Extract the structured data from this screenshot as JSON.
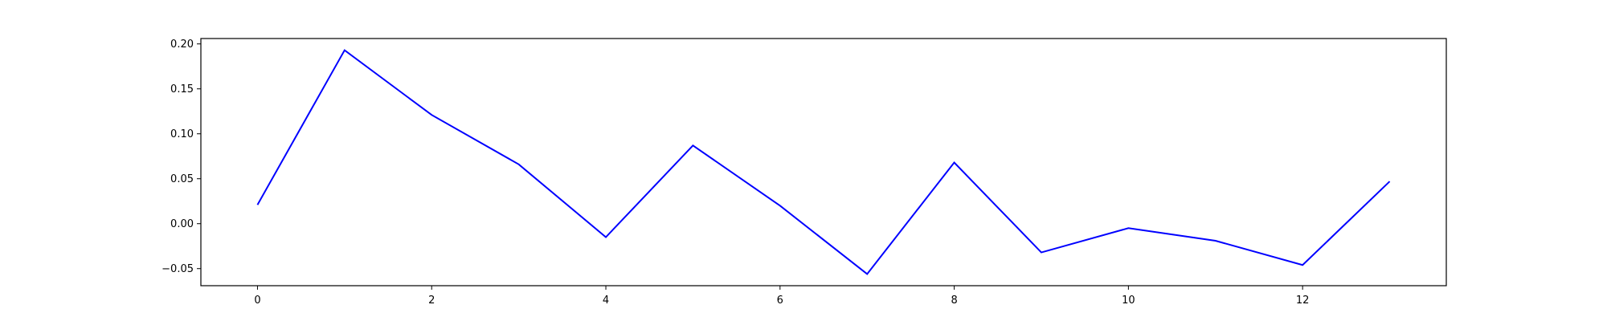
{
  "chart_data": {
    "type": "line",
    "title": "",
    "xlabel": "",
    "ylabel": "",
    "xlim": [
      -0.65,
      13.65
    ],
    "ylim": [
      -0.069,
      0.206
    ],
    "xticks": [
      0,
      2,
      4,
      6,
      8,
      10,
      12
    ],
    "xtick_labels": [
      "0",
      "2",
      "4",
      "6",
      "8",
      "10",
      "12"
    ],
    "yticks": [
      -0.05,
      0.0,
      0.05,
      0.1,
      0.15,
      0.2
    ],
    "ytick_labels": [
      "−0.05",
      "0.00",
      "0.05",
      "0.10",
      "0.15",
      "0.20"
    ],
    "grid": false,
    "legend": "none",
    "series": [
      {
        "color": "#0000ff",
        "x": [
          0,
          1,
          2,
          3,
          4,
          5,
          6,
          7,
          8,
          9,
          10,
          11,
          12,
          13
        ],
        "values": [
          0.021,
          0.193,
          0.121,
          0.066,
          -0.015,
          0.087,
          0.02,
          -0.056,
          0.068,
          -0.032,
          -0.005,
          -0.019,
          -0.046,
          0.047
        ]
      }
    ]
  }
}
